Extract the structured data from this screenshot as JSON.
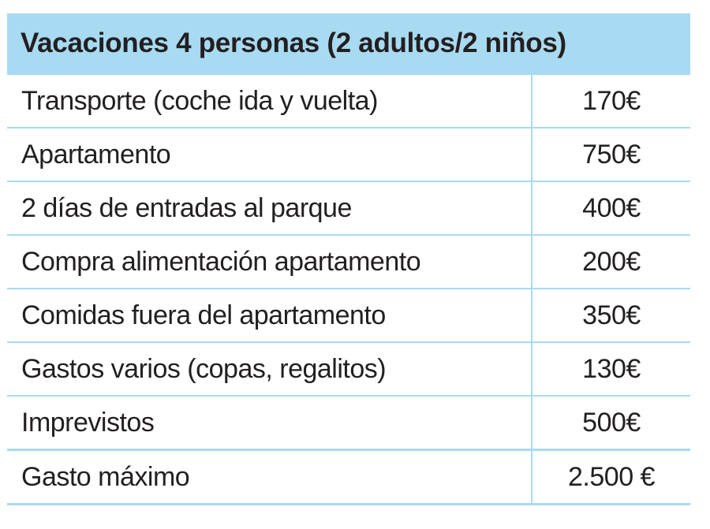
{
  "table": {
    "title": "Vacaciones 4 personas (2 adultos/2 niños)",
    "rows": [
      {
        "concept": "Transporte (coche ida y vuelta)",
        "amount": "170€"
      },
      {
        "concept": "Apartamento",
        "amount": "750€"
      },
      {
        "concept": "2 días de entradas al parque",
        "amount": "400€"
      },
      {
        "concept": "Compra alimentación apartamento",
        "amount": "200€"
      },
      {
        "concept": "Comidas fuera del apartamento",
        "amount": "350€"
      },
      {
        "concept": "Gastos varios (copas, regalitos)",
        "amount": "130€"
      },
      {
        "concept": "Imprevistos",
        "amount": "500€"
      }
    ],
    "total": {
      "concept": "Gasto máximo",
      "amount": "2.500 €"
    }
  },
  "colors": {
    "header_background": "#a8daf2",
    "grid_lines": "#a8daf2",
    "text": "#231f20"
  }
}
